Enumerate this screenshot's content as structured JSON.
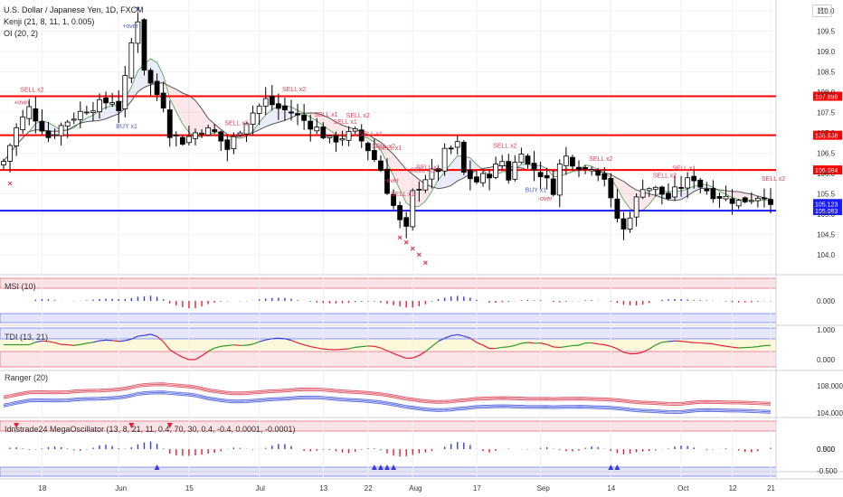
{
  "header": {
    "symbol": "U.S. Dollar / Japanese Yen, 1D, FXCM",
    "ind1": "Kenji (21, 8, 11, 1, 0.005)",
    "ind2": "OI (20, 2)",
    "currency_badge": "JPY"
  },
  "panes": {
    "msi": "MSI (10)",
    "tdi": "TDI (13, 21)",
    "ranger": "Ranger (20)",
    "mega": "Idnstrade24 MegaOscillator (13, 8, 21, 11, 0.4, 70, 30, 0.4, -0.4, 0.0001, -0.0001)"
  },
  "colors": {
    "bull": "#ffffff",
    "bear": "#000000",
    "red_level": "#ff0000",
    "blue_level": "#1a1aff",
    "signal_sell": "#e0405a",
    "signal_buy": "#4a5bd8",
    "osc_pos": "#3b3bdb",
    "osc_neg": "#e0203a",
    "osc_mid": "#30a030"
  },
  "chart_data": [
    {
      "type": "candlestick",
      "title": "U.S. Dollar / Japanese Yen, 1D, FXCM",
      "x_ticks": [
        "18",
        "Jun",
        "15",
        "Jul",
        "13",
        "22",
        "Aug",
        "17",
        "Sep",
        "14",
        "Oct",
        "12",
        "21"
      ],
      "y_ticks": [
        104.0,
        104.5,
        105.0,
        105.5,
        106.0,
        106.5,
        107.0,
        107.5,
        108.0,
        108.5,
        109.0,
        109.5,
        110.0
      ],
      "ylim": [
        103.55,
        110.2
      ],
      "levels": [
        {
          "label": "107.898",
          "value": 107.898,
          "color": "red"
        },
        {
          "label": "106.938",
          "value": 106.938,
          "color": "red"
        },
        {
          "label": "106.084",
          "value": 106.084,
          "color": "red"
        },
        {
          "label": "105.083",
          "value": 105.083,
          "color": "blue"
        }
      ],
      "last_price": "105.123",
      "signals": [
        {
          "text": "+over",
          "color": "sell"
        },
        {
          "text": "SELL x2",
          "color": "sell"
        },
        {
          "text": "+over",
          "color": "buy"
        },
        {
          "text": "BUY x1",
          "color": "buy"
        },
        {
          "text": "SELL x2",
          "color": "sell"
        },
        {
          "text": "SELL x2",
          "color": "sell"
        },
        {
          "text": "SELL x1",
          "color": "sell"
        },
        {
          "text": "SELL x1",
          "color": "sell"
        },
        {
          "text": "SELL x2",
          "color": "sell"
        },
        {
          "text": "SELL x1",
          "color": "sell"
        },
        {
          "text": "SELL x2",
          "color": "sell"
        },
        {
          "text": "SELL x1",
          "color": "sell"
        },
        {
          "text": "SELL x1",
          "color": "sell"
        },
        {
          "text": "-over",
          "color": "sell"
        },
        {
          "text": "SELL x2",
          "color": "sell"
        },
        {
          "text": "SELL x1",
          "color": "sell"
        },
        {
          "text": "SELL x2",
          "color": "sell"
        },
        {
          "text": "BUY x1",
          "color": "buy"
        },
        {
          "text": "-over",
          "color": "sell"
        },
        {
          "text": "SELL x2",
          "color": "sell"
        },
        {
          "text": "SELL x2",
          "color": "sell"
        },
        {
          "text": "SELL x1",
          "color": "sell"
        },
        {
          "text": "SELL x2",
          "color": "sell"
        }
      ]
    },
    {
      "type": "bar",
      "title": "MSI (10)",
      "y_ticks": [
        "0.000"
      ],
      "ylim": [
        -1,
        1
      ]
    },
    {
      "type": "line",
      "title": "TDI (13, 21)",
      "y_ticks": [
        "1.000",
        "0.000"
      ],
      "ylim": [
        -0.2,
        1.2
      ]
    },
    {
      "type": "line",
      "title": "Ranger (20)",
      "y_ticks": [
        "108.000",
        "104.000"
      ],
      "ylim": [
        103.0,
        110.5
      ]
    },
    {
      "type": "bar",
      "title": "Idnstrade24 MegaOscillator (13, 8, 21, 11, 0.4, 70, 30, 0.4, -0.4, 0.0001, -0.0001)",
      "y_ticks": [
        "0.500",
        "0.000",
        "-0.500"
      ],
      "ylim": [
        -0.85,
        0.85
      ]
    }
  ]
}
